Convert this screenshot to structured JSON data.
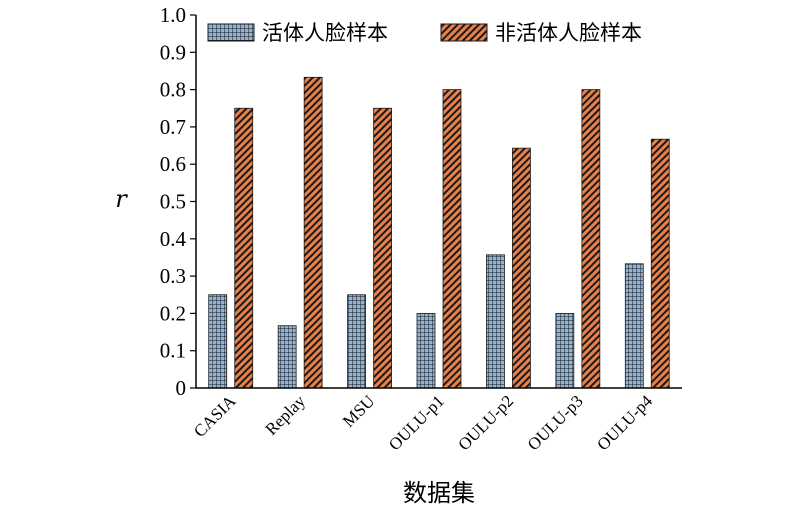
{
  "chart_data": {
    "type": "bar",
    "title": "",
    "xlabel": "数据集",
    "ylabel": "r",
    "ylim": [
      0,
      1.0
    ],
    "yticks": [
      "0",
      "0.1",
      "0.2",
      "0.3",
      "0.4",
      "0.5",
      "0.6",
      "0.7",
      "0.8",
      "0.9",
      "1.0"
    ],
    "grid": false,
    "legend_position": "top",
    "categories": [
      "CASIA",
      "Replay",
      "MSU",
      "OULU-p1",
      "OULU-p2",
      "OULU-p3",
      "OULU-p4"
    ],
    "series": [
      {
        "name": "活体人脸样本",
        "color": "#8fb4d6",
        "pattern": "grid",
        "values": [
          0.25,
          0.167,
          0.25,
          0.2,
          0.357,
          0.2,
          0.333
        ]
      },
      {
        "name": "非活体人脸样本",
        "color": "#e8804a",
        "pattern": "diagonal-stripes",
        "values": [
          0.75,
          0.833,
          0.75,
          0.8,
          0.643,
          0.8,
          0.667
        ]
      }
    ]
  }
}
